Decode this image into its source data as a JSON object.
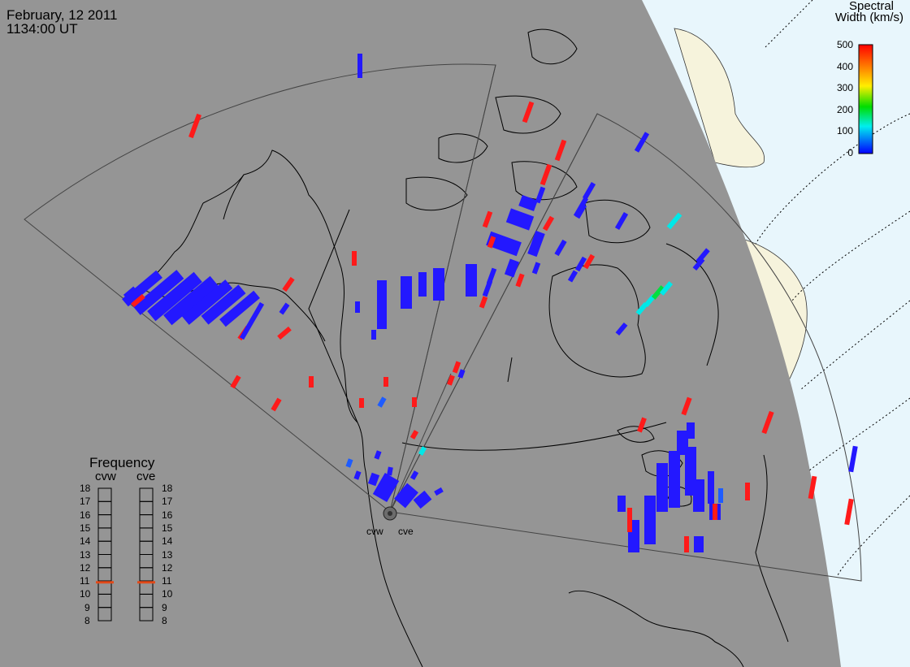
{
  "header": {
    "date": "February, 12 2011",
    "time": "1134:00 UT"
  },
  "colorbar": {
    "title_line1": "Spectral",
    "title_line2": "Width (km/s)",
    "labels": [
      "500",
      "400",
      "300",
      "200",
      "100",
      "0"
    ],
    "range": [
      0,
      500
    ],
    "colors": [
      "#ff0000",
      "#ff8800",
      "#ffee00",
      "#00dd00",
      "#00eeee",
      "#0000ff"
    ]
  },
  "frequency_panel": {
    "title": "Frequency",
    "radars": [
      {
        "name": "cvw",
        "value_mhz": 10.9
      },
      {
        "name": "cve",
        "value_mhz": 10.9
      }
    ],
    "ticks": [
      "18",
      "17",
      "16",
      "15",
      "14",
      "13",
      "12",
      "11",
      "10",
      "9",
      "8"
    ],
    "range": [
      8,
      18
    ],
    "marker_color": "#e24a1a"
  },
  "sites": [
    {
      "name": "cvw"
    },
    {
      "name": "cve"
    }
  ],
  "colors": {
    "night": "#959595",
    "day": "#e8f6fc",
    "land_day": "#f6f3dc",
    "scatter_low": "#2318ff",
    "scatter_high": "#ff1a1a",
    "scatter_mid": "#00e8e8"
  }
}
